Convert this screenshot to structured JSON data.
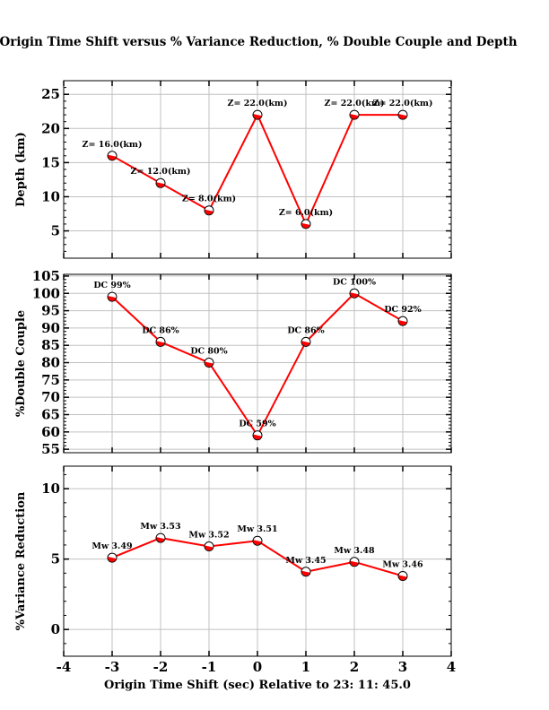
{
  "chart_data": [
    {
      "type": "line",
      "title": "Origin Time Shift versus % Variance Reduction, % Double Couple and Depth",
      "ylabel": "Depth (km)",
      "x": [
        -3,
        -2,
        -1,
        0,
        1,
        2,
        3
      ],
      "values": [
        16,
        12,
        8,
        22,
        6,
        22,
        22
      ],
      "point_labels": [
        "Z= 16.0(km)",
        "Z= 12.0(km)",
        "Z= 8.0(km)",
        "Z= 22.0(km)",
        "Z= 6.0(km)",
        "Z= 22.0(km)",
        "Z= 22.0(km)"
      ],
      "xlim": [
        -4,
        4
      ],
      "ylim": [
        1,
        27
      ],
      "yticks": [
        5,
        10,
        15,
        20,
        25
      ],
      "grid": true
    },
    {
      "type": "line",
      "ylabel": "%Double Couple",
      "x": [
        -3,
        -2,
        -1,
        0,
        1,
        2,
        3
      ],
      "values": [
        99,
        86,
        80,
        59,
        86,
        100,
        92
      ],
      "point_labels": [
        "DC 99%",
        "DC 86%",
        "DC 80%",
        "DC 59%",
        "DC 86%",
        "DC 100%",
        "DC 92%"
      ],
      "xlim": [
        -4,
        4
      ],
      "ylim": [
        54,
        105.5
      ],
      "yticks": [
        55,
        60,
        65,
        70,
        75,
        80,
        85,
        90,
        95,
        100,
        105
      ],
      "grid": true
    },
    {
      "type": "line",
      "ylabel": "%Variance Reduction",
      "xlabel": "Origin Time Shift (sec) Relative to 23: 11: 45.0",
      "x": [
        -3,
        -2,
        -1,
        0,
        1,
        2,
        3
      ],
      "values": [
        5.1,
        6.5,
        5.9,
        6.3,
        4.1,
        4.8,
        3.8
      ],
      "point_labels": [
        "Mw 3.49",
        "Mw 3.53",
        "Mw 3.52",
        "Mw 3.51",
        "Mw 3.45",
        "Mw 3.48",
        "Mw 3.46"
      ],
      "xlim": [
        -4,
        4
      ],
      "ylim": [
        -1.9,
        11.6
      ],
      "yticks": [
        0,
        5,
        10
      ],
      "xticks": [
        -4,
        -3,
        -2,
        -1,
        0,
        1,
        2,
        3,
        4
      ],
      "grid": true
    }
  ],
  "colors": {
    "line": "#ff0000",
    "grid": "#c0c0c0",
    "axis": "#000000"
  }
}
